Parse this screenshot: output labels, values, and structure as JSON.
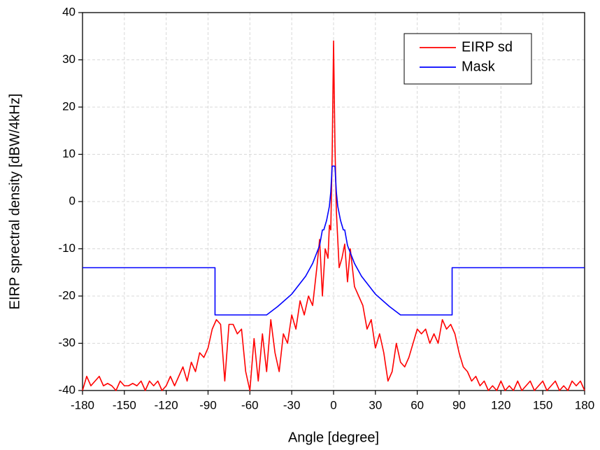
{
  "chart_data": {
    "type": "line",
    "xlabel": "Angle [degree]",
    "ylabel": "EIRP sprectral density [dBW/4kHz]",
    "xlim": [
      -180,
      180
    ],
    "xticks": [
      -180,
      -150,
      -120,
      -90,
      -60,
      -30,
      0,
      30,
      60,
      90,
      120,
      150,
      180
    ],
    "ylim": [
      -40,
      40
    ],
    "yticks": [
      -40,
      -30,
      -20,
      -10,
      0,
      10,
      20,
      30,
      40
    ],
    "grid": true,
    "legend": "upper-right",
    "series": [
      {
        "name": "EIRP sd",
        "color": "#ff0000",
        "x": [
          -180,
          -177,
          -174,
          -171,
          -168,
          -165,
          -162,
          -159,
          -156,
          -153,
          -150,
          -147,
          -144,
          -141,
          -138,
          -135,
          -132,
          -129,
          -126,
          -123,
          -120,
          -117,
          -114,
          -111,
          -108,
          -105,
          -102,
          -99,
          -96,
          -93,
          -90,
          -87,
          -84,
          -81,
          -78,
          -75,
          -72,
          -69,
          -66,
          -63,
          -60,
          -57,
          -54,
          -51,
          -48,
          -45,
          -42,
          -39,
          -36,
          -33,
          -30,
          -27,
          -24,
          -21,
          -18,
          -15,
          -12,
          -10,
          -8,
          -6,
          -4,
          -3,
          -2,
          -1,
          0,
          1,
          2,
          3,
          4,
          6,
          8,
          10,
          12,
          15,
          18,
          21,
          24,
          27,
          30,
          33,
          36,
          39,
          42,
          45,
          48,
          51,
          54,
          57,
          60,
          63,
          66,
          69,
          72,
          75,
          78,
          81,
          84,
          87,
          90,
          93,
          96,
          99,
          102,
          105,
          108,
          111,
          114,
          117,
          120,
          123,
          126,
          129,
          132,
          135,
          138,
          141,
          144,
          147,
          150,
          153,
          156,
          159,
          162,
          165,
          168,
          171,
          174,
          177,
          180
        ],
        "values": [
          -40,
          -37,
          -39,
          -38,
          -37,
          -39,
          -38.5,
          -39,
          -40,
          -38,
          -39,
          -39,
          -38.5,
          -39,
          -38,
          -40,
          -38,
          -39,
          -38,
          -40,
          -39,
          -37,
          -39,
          -37,
          -35,
          -38,
          -34,
          -36,
          -32,
          -33,
          -31,
          -27,
          -25,
          -26,
          -38,
          -26,
          -26,
          -28,
          -27,
          -36,
          -40,
          -29,
          -38,
          -28,
          -36,
          -25,
          -32,
          -36,
          -28,
          -30,
          -24,
          -27,
          -21,
          -24,
          -20,
          -22,
          -14,
          -8,
          -20,
          -10,
          -12,
          -5,
          -6,
          10,
          34,
          12,
          -2,
          -8,
          -14,
          -12,
          -9,
          -17,
          -10,
          -18,
          -20,
          -22,
          -27,
          -25,
          -31,
          -28,
          -32,
          -38,
          -36,
          -30,
          -34,
          -35,
          -33,
          -30,
          -27,
          -28,
          -27,
          -30,
          -28,
          -30,
          -25,
          -27,
          -26,
          -28,
          -32,
          -35,
          -36,
          -38,
          -37,
          -39,
          -38,
          -40,
          -39,
          -40,
          -38,
          -40,
          -39,
          -40,
          -38,
          -40,
          -39,
          -38,
          -40,
          -39,
          -38,
          -40,
          -39,
          -38,
          -40,
          -39,
          -40,
          -38,
          -39,
          -38,
          -40
        ]
      },
      {
        "name": "Mask",
        "color": "#0000ff",
        "x": [
          -180,
          -85,
          -85,
          -48,
          -40,
          -30,
          -20,
          -15,
          -10,
          -8,
          -7,
          -5,
          -3,
          -2,
          -1,
          0,
          1,
          2,
          3,
          5,
          7,
          8,
          10,
          15,
          20,
          30,
          40,
          48,
          85,
          85,
          180
        ],
        "values": [
          -14,
          -14,
          -24,
          -24,
          -22.2,
          -19.6,
          -15.8,
          -13.1,
          -9.3,
          -6,
          -6,
          -4,
          -1,
          2,
          7.5,
          7.5,
          7.5,
          2,
          -1,
          -4,
          -6,
          -6,
          -9.3,
          -13.1,
          -15.8,
          -19.6,
          -22.2,
          -24,
          -24,
          -14,
          -14
        ]
      }
    ]
  }
}
